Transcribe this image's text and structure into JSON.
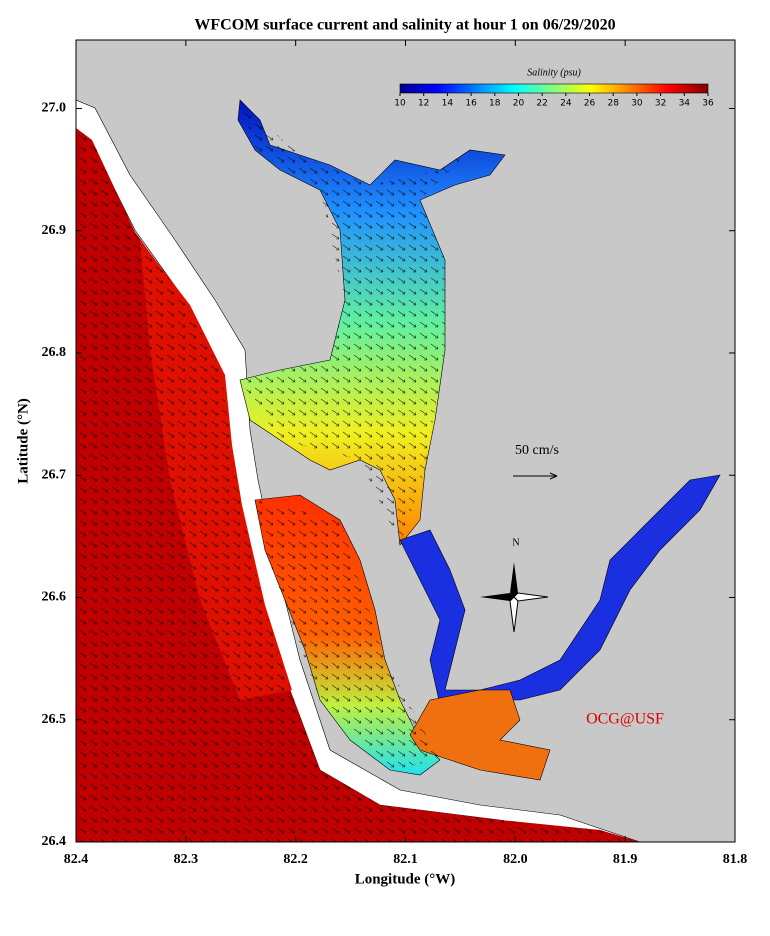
{
  "chart_data": {
    "type": "map",
    "title": "WFCOM surface current and salinity at hour 1 on 06/29/2020",
    "x_label": "Longitude (°W)",
    "y_label": "Latitude (°N)",
    "xlim": [
      82.4,
      81.8
    ],
    "xticks": [
      82.4,
      82.3,
      82.2,
      82.1,
      {
        "value": 82,
        "label": "82.0"
      },
      81.9,
      81.8
    ],
    "ylim": [
      26.4,
      27.056
    ],
    "yticks": [
      {
        "value": 26.4,
        "label": "26.4"
      },
      26.5,
      26.6,
      26.7,
      26.8,
      26.9,
      {
        "value": 27,
        "label": "27.0"
      }
    ],
    "colorbar": {
      "label": "Salinity (psu)",
      "lim": [
        10,
        36
      ],
      "ticks": [
        10,
        12,
        14,
        16,
        18,
        20,
        22,
        24,
        26,
        28,
        30,
        32,
        34,
        36
      ]
    },
    "scale_label": "50 cm/s",
    "north_label": "N",
    "credit": "OCG@USF"
  }
}
